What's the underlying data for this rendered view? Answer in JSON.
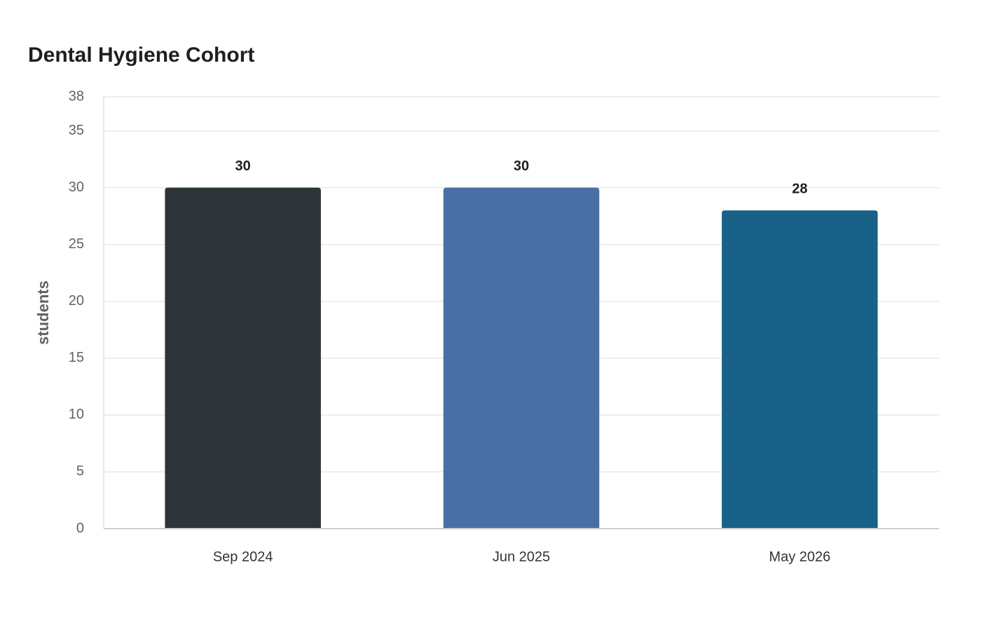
{
  "chart_data": {
    "type": "bar",
    "title": "Dental Hygiene Cohort",
    "y_label": "students",
    "categories": [
      "Sep 2024",
      "Jun 2025",
      "May 2026"
    ],
    "values": [
      30,
      30,
      28
    ],
    "colors": [
      "#2e3538",
      "#4a6fa5",
      "#186189"
    ],
    "ylim": [
      0,
      38
    ],
    "yticks": [
      0,
      5,
      10,
      15,
      20,
      25,
      30,
      35,
      38
    ],
    "grid": true
  }
}
